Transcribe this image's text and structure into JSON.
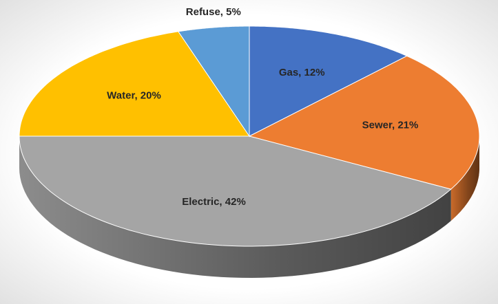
{
  "chart_data": {
    "type": "pie",
    "values": [
      12,
      21,
      42,
      20,
      5
    ],
    "value_labels": [
      "Gas, 12%",
      "Sewer, 21%",
      "Electric, 42%",
      "Water, 20%",
      "Refuse, 5%"
    ],
    "colors": [
      "#4472c4",
      "#ed7d31",
      "#a5a5a5",
      "#ffc000",
      "#5b9bd5"
    ]
  }
}
